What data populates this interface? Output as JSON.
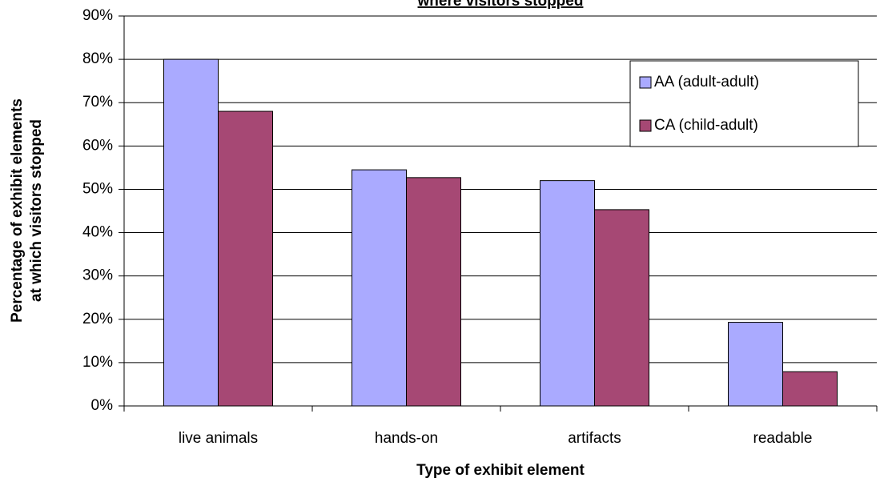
{
  "chart_data": {
    "type": "bar",
    "title": "where visitors stopped",
    "xlabel": "Type of exhibit element",
    "ylabel": [
      "Percentage of exhibit elements",
      "at which visitors stopped"
    ],
    "categories": [
      "live animals",
      "hands-on",
      "artifacts",
      "readable"
    ],
    "series": [
      {
        "name": "AA (adult-adult)",
        "color": "#aaaaff",
        "values": [
          80,
          54.5,
          52,
          19.3
        ]
      },
      {
        "name": "CA (child-adult)",
        "color": "#a64874",
        "values": [
          68,
          52.7,
          45.3,
          7.9
        ]
      }
    ],
    "ylim": [
      0,
      90
    ],
    "yticks": [
      {
        "value": 0,
        "label": "0%"
      },
      {
        "value": 10,
        "label": "10%"
      },
      {
        "value": 20,
        "label": "20%"
      },
      {
        "value": 30,
        "label": "30%"
      },
      {
        "value": 40,
        "label": "40%"
      },
      {
        "value": 50,
        "label": "50%"
      },
      {
        "value": 60,
        "label": "60%"
      },
      {
        "value": 70,
        "label": "70%"
      },
      {
        "value": 80,
        "label": "80%"
      },
      {
        "value": 90,
        "label": "90%"
      }
    ],
    "grid": true,
    "legend": "upper right"
  }
}
